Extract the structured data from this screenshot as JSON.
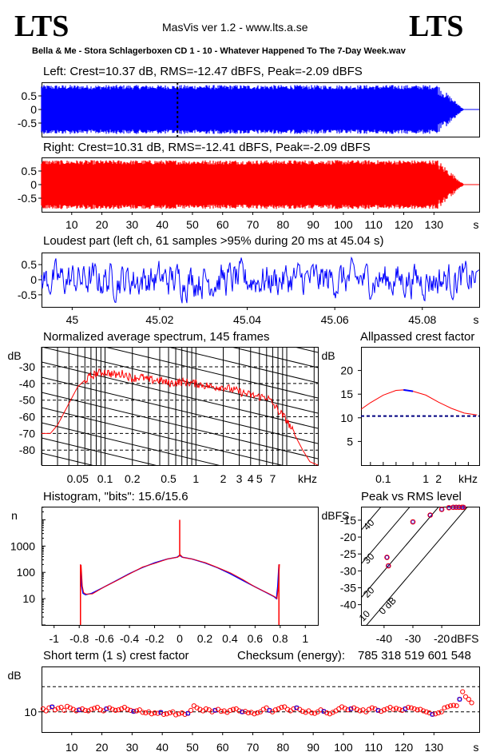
{
  "header": {
    "logo_left": "LTS",
    "logo_right": "LTS",
    "app_title": "MasVis ver 1.2 - www.lts.a.se",
    "file_title": "Bella & Me - Stora Schlagerboxen CD 1 - 10 - Whatever Happened To The 7-Day Week.wav"
  },
  "colors": {
    "left": "#0000ff",
    "right": "#ff0000",
    "dashed_crest": "#000080",
    "hist_blue": "#0000ff"
  },
  "chart_data": [
    {
      "id": "left-waveform",
      "type": "area",
      "title": "Left: Crest=10.37 dB, RMS=-12.47 dBFS, Peak=-2.09 dBFS",
      "yticks": [
        "0.5",
        "0",
        "-0.5"
      ],
      "ylim": [
        -1,
        1
      ],
      "xlim": [
        0,
        145
      ],
      "envelope": {
        "t_start": 0,
        "t_fade_start": 131.5,
        "t_end": 140,
        "amplitude": 0.9
      },
      "marker_time_s": 45.04
    },
    {
      "id": "right-waveform",
      "type": "area",
      "title": "Right: Crest=10.31 dB, RMS=-12.41 dBFS, Peak=-2.09 dBFS",
      "yticks": [
        "0.5",
        "0",
        "-0.5"
      ],
      "ylim": [
        -1,
        1
      ],
      "xlim": [
        0,
        145
      ],
      "xtick_values": [
        10,
        20,
        30,
        40,
        50,
        60,
        70,
        80,
        90,
        100,
        110,
        120,
        130
      ],
      "xtick_labels": [
        "10",
        "20",
        "30",
        "40",
        "50",
        "60",
        "70",
        "80",
        "90",
        "100",
        "110",
        "120",
        "130"
      ],
      "xunit": "s",
      "envelope": {
        "t_start": 0,
        "t_fade_start": 131.5,
        "t_end": 140,
        "amplitude": 0.9
      }
    },
    {
      "id": "loudest-part",
      "type": "line",
      "title": "Loudest part (left  ch, 61 samples >95% during 20 ms at 45.04 s)",
      "yticks": [
        "0.5",
        "0",
        "-0.5"
      ],
      "ylim": [
        -0.9,
        0.9
      ],
      "xlim": [
        44.993,
        45.093
      ],
      "xtick_values": [
        45,
        45.02,
        45.04,
        45.06,
        45.08
      ],
      "xtick_labels": [
        "45",
        "45.02",
        "45.04",
        "45.06",
        "45.08"
      ],
      "xunit": "s"
    },
    {
      "id": "spectrum",
      "type": "line",
      "title": "Normalized average spectrum, 145 frames",
      "ylabel": "dB",
      "yticks": [
        "-30",
        "-40",
        "-50",
        "-60",
        "-70",
        "-80"
      ],
      "ytick_values": [
        -30,
        -40,
        -50,
        -60,
        -70,
        -80
      ],
      "ylim": [
        -89,
        -18
      ],
      "xlog_khz": [
        0.02,
        22
      ],
      "xtick_values": [
        0.05,
        0.1,
        0.2,
        0.5,
        1,
        2,
        3,
        4,
        5,
        7
      ],
      "xtick_labels": [
        "0.05",
        "0.1",
        "0.2",
        "0.5",
        "1",
        "2",
        "3",
        "4",
        "5",
        "7"
      ],
      "xunit": "kHz",
      "series": [
        {
          "x_khz": [
            0.02,
            0.025,
            0.03,
            0.04,
            0.05,
            0.06,
            0.08,
            0.1,
            0.13,
            0.16,
            0.2,
            0.25,
            0.3,
            0.4,
            0.5,
            0.7,
            1,
            1.5,
            2,
            3,
            4,
            5,
            6,
            7,
            8,
            10,
            12,
            15,
            18,
            22
          ],
          "y_db": [
            -70,
            -70,
            -65,
            -52,
            -42,
            -38,
            -34,
            -33,
            -35,
            -34,
            -37,
            -36,
            -38,
            -38,
            -40,
            -39,
            -40,
            -42,
            -42,
            -45,
            -47,
            -48,
            -48,
            -52,
            -56,
            -62,
            -70,
            -80,
            -87,
            -89
          ]
        }
      ]
    },
    {
      "id": "allpassed-crest",
      "type": "line",
      "title": "Allpassed crest factor",
      "ylabel": "dB",
      "yticks": [
        "20",
        "15",
        "10",
        "5"
      ],
      "ytick_values": [
        20,
        15,
        10,
        5
      ],
      "ylim": [
        0,
        25
      ],
      "xtick_labels": [
        "0.1",
        "1",
        "2"
      ],
      "xtick_values": [
        0.1,
        1,
        2
      ],
      "xunit": "kHz",
      "reference_db": 10.37,
      "series": [
        {
          "x_khz": [
            0.03,
            0.05,
            0.1,
            0.2,
            0.3,
            0.5,
            1,
            2,
            4,
            8,
            16
          ],
          "y_db": [
            11.8,
            13.2,
            14.8,
            15.8,
            15.9,
            15.6,
            14.8,
            13.3,
            12.0,
            11.0,
            10.6
          ]
        }
      ]
    },
    {
      "id": "histogram",
      "type": "line",
      "title": "Histogram, \"bits\": 15.6/15.6",
      "ylabel": "n",
      "yticks": [
        "1000",
        "100",
        "10"
      ],
      "ytick_values": [
        1000,
        100,
        10
      ],
      "xlim": [
        -1.1,
        1.1
      ],
      "xtick_values": [
        -1,
        -0.8,
        -0.6,
        -0.4,
        -0.2,
        0,
        0.2,
        0.4,
        0.6,
        0.8,
        1
      ],
      "xtick_labels": [
        "-1",
        "-0.8",
        "-0.6",
        "-0.4",
        "-0.2",
        "0",
        "0.2",
        "0.4",
        "0.6",
        "0.8",
        "1"
      ],
      "series": [
        {
          "x": [
            -0.79,
            -0.78,
            -0.77,
            -0.75,
            -0.7,
            -0.6,
            -0.5,
            -0.4,
            -0.3,
            -0.2,
            -0.1,
            -0.02,
            0,
            0.02,
            0.1,
            0.2,
            0.3,
            0.4,
            0.5,
            0.6,
            0.7,
            0.75,
            0.77,
            0.78,
            0.79
          ],
          "y": [
            200,
            30,
            16,
            14,
            16,
            28,
            50,
            90,
            150,
            230,
            320,
            380,
            450,
            380,
            320,
            230,
            150,
            90,
            50,
            28,
            16,
            12,
            10,
            30,
            200
          ]
        }
      ]
    },
    {
      "id": "peak-vs-rms",
      "type": "scatter",
      "title": "Peak vs RMS level",
      "ylabel": "dBFS",
      "xunit": "dBFS",
      "yticks": [
        "-15",
        "-20",
        "-25",
        "-30",
        "-35",
        "-40"
      ],
      "ytick_values": [
        -15,
        -20,
        -25,
        -30,
        -35,
        -40
      ],
      "ylim": [
        -46,
        -11
      ],
      "xtick_values": [
        -40,
        -30,
        -20
      ],
      "xtick_labels": [
        "-40",
        "-30",
        "-20"
      ],
      "xlim": [
        -48,
        -7
      ],
      "diagonals": [
        "40",
        "30",
        "20",
        "10",
        "0 dB"
      ],
      "points": [
        {
          "rms": -38.5,
          "peak": -28.5
        },
        {
          "rms": -39,
          "peak": -26
        },
        {
          "rms": -30,
          "peak": -15.5
        },
        {
          "rms": -24,
          "peak": -13.5
        },
        {
          "rms": -20,
          "peak": -11.8
        },
        {
          "rms": -17.5,
          "peak": -11.3
        },
        {
          "rms": -16,
          "peak": -11.2
        },
        {
          "rms": -15,
          "peak": -11.2
        },
        {
          "rms": -14,
          "peak": -11.2
        },
        {
          "rms": -13,
          "peak": -11.2
        },
        {
          "rms": -12.5,
          "peak": -11.2
        }
      ]
    },
    {
      "id": "short-term-crest",
      "type": "scatter",
      "title": "Short term (1 s) crest factor",
      "checksum_label": "Checksum (energy):",
      "checksum_value": "785 318 519 601 548",
      "ylabel": "dB",
      "yticks": [
        "10"
      ],
      "ytick_values": [
        10
      ],
      "ylim": [
        6,
        19
      ],
      "xlim": [
        0,
        145
      ],
      "xtick_values": [
        10,
        20,
        30,
        40,
        50,
        60,
        70,
        80,
        90,
        100,
        110,
        120,
        130
      ],
      "xtick_labels": [
        "10",
        "20",
        "30",
        "40",
        "50",
        "60",
        "70",
        "80",
        "90",
        "100",
        "110",
        "120",
        "130"
      ],
      "xunit": "s",
      "values": [
        10.6,
        10.2,
        10.8,
        11.0,
        10.4,
        10.7,
        10.9,
        10.3,
        11.1,
        10.8,
        10.5,
        10.2,
        10.4,
        10.6,
        10.3,
        10.2,
        10.5,
        10.7,
        10.9,
        10.4,
        10.2,
        10.6,
        10.8,
        10.5,
        10.3,
        10.4,
        10.6,
        10.9,
        10.5,
        10.3,
        10.1,
        10.2,
        10.4,
        9.9,
        9.8,
        10.0,
        9.6,
        9.8,
        9.7,
        9.9,
        9.5,
        9.6,
        9.8,
        10.0,
        9.4,
        9.6,
        9.8,
        9.5,
        9.7,
        10.3,
        11.2,
        10.8,
        10.5,
        10.2,
        10.6,
        10.4,
        10.0,
        10.3,
        10.5,
        10.1,
        10.2,
        9.9,
        10.3,
        10.5,
        10.6,
        10.2,
        10.0,
        10.1,
        9.8,
        9.9,
        9.6,
        9.8,
        10.0,
        10.5,
        10.8,
        10.3,
        10.0,
        10.4,
        10.6,
        10.9,
        11.0,
        10.5,
        10.2,
        10.6,
        10.8,
        10.5,
        10.1,
        9.9,
        10.2,
        9.8,
        9.7,
        10.0,
        10.4,
        10.1,
        9.8,
        9.6,
        9.9,
        10.2,
        10.6,
        11.0,
        10.7,
        10.4,
        10.6,
        10.8,
        10.5,
        10.2,
        10.4,
        10.0,
        10.5,
        10.8,
        10.6,
        10.3,
        10.1,
        10.4,
        10.6,
        10.9,
        10.5,
        10.7,
        10.5,
        10.3,
        10.6,
        10.9,
        10.8,
        10.6,
        10.4,
        10.5,
        10.2,
        10.0,
        9.8,
        9.5,
        9.6,
        9.8,
        10.0,
        10.8,
        11.0,
        11.2,
        11.3,
        11.2,
        12.5,
        14.0,
        13.0,
        12.5,
        11.8
      ]
    }
  ]
}
